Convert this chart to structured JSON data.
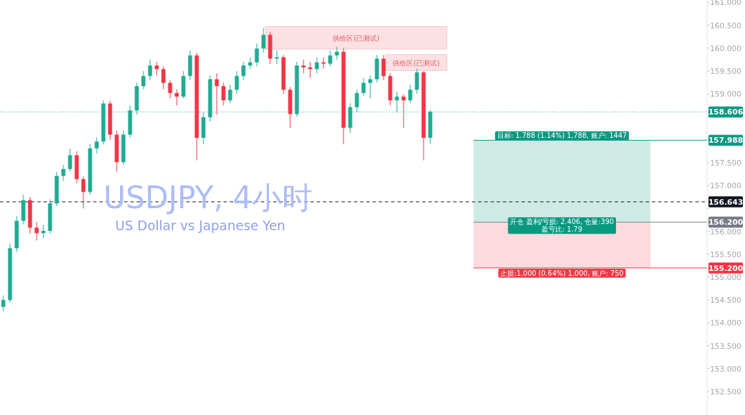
{
  "chart_data": {
    "type": "candlestick",
    "title": "USDJPY, 4小时",
    "subtitle": "US Dollar vs Japanese Yen",
    "categories": [
      null,
      null,
      null,
      null,
      null,
      null,
      null,
      null,
      null,
      null,
      null,
      null,
      null,
      null,
      null,
      null,
      null,
      null,
      null,
      null,
      null,
      null,
      null,
      null,
      null,
      null,
      null,
      null,
      null,
      null,
      null,
      null,
      null,
      null,
      null,
      null,
      null,
      null,
      null,
      null,
      null,
      null,
      null,
      null,
      null,
      null,
      null,
      null,
      null,
      null,
      null,
      null,
      null,
      null,
      null,
      null,
      null,
      null,
      null,
      null,
      null,
      null,
      null,
      null,
      null,
      null,
      null,
      null,
      null,
      null,
      null,
      null,
      null,
      null,
      null,
      null,
      null,
      null,
      null,
      null,
      null,
      null,
      null,
      null,
      null,
      null,
      null,
      null,
      null,
      null,
      null,
      null,
      null,
      null,
      null,
      null,
      null,
      null,
      null,
      null,
      null,
      null,
      null,
      null,
      null,
      null
    ],
    "ohlc": [
      [
        154.35,
        154.6,
        154.25,
        154.5
      ],
      [
        154.5,
        155.73,
        154.45,
        155.63
      ],
      [
        155.63,
        156.33,
        155.55,
        156.23
      ],
      [
        156.23,
        156.8,
        156.15,
        156.68
      ],
      [
        156.68,
        156.75,
        155.95,
        156.08
      ],
      [
        156.08,
        156.2,
        155.8,
        155.96
      ],
      [
        155.96,
        156.15,
        155.85,
        156.01
      ],
      [
        156.01,
        156.7,
        155.95,
        156.61
      ],
      [
        156.61,
        157.3,
        156.55,
        157.21
      ],
      [
        157.21,
        157.45,
        157.1,
        157.36
      ],
      [
        157.36,
        157.8,
        157.3,
        157.66
      ],
      [
        157.66,
        157.75,
        157.05,
        157.14
      ],
      [
        157.14,
        157.2,
        156.5,
        156.86
      ],
      [
        156.86,
        157.9,
        156.8,
        157.81
      ],
      [
        157.81,
        158.05,
        157.7,
        157.96
      ],
      [
        157.96,
        158.86,
        157.9,
        158.79
      ],
      [
        158.79,
        158.85,
        158.0,
        158.11
      ],
      [
        158.11,
        158.2,
        157.3,
        157.51
      ],
      [
        157.51,
        158.2,
        157.45,
        158.11
      ],
      [
        158.11,
        158.75,
        158.05,
        158.64
      ],
      [
        158.64,
        159.25,
        158.55,
        159.17
      ],
      [
        159.17,
        159.5,
        159.1,
        159.39
      ],
      [
        159.39,
        159.75,
        159.3,
        159.62
      ],
      [
        159.62,
        159.7,
        159.4,
        159.54
      ],
      [
        159.54,
        159.6,
        159.1,
        159.24
      ],
      [
        159.24,
        159.3,
        158.9,
        159.02
      ],
      [
        159.02,
        159.1,
        158.75,
        158.94
      ],
      [
        158.94,
        159.5,
        158.9,
        159.39
      ],
      [
        159.39,
        159.95,
        159.3,
        159.84
      ],
      [
        159.84,
        159.9,
        157.55,
        158.04
      ],
      [
        158.04,
        158.6,
        157.9,
        158.49
      ],
      [
        158.49,
        159.4,
        158.4,
        159.32
      ],
      [
        159.32,
        159.45,
        158.55,
        159.17
      ],
      [
        159.17,
        159.25,
        158.75,
        158.86
      ],
      [
        158.86,
        159.2,
        158.8,
        159.09
      ],
      [
        159.09,
        159.5,
        159.0,
        159.39
      ],
      [
        159.39,
        159.7,
        159.3,
        159.62
      ],
      [
        159.62,
        159.8,
        159.55,
        159.69
      ],
      [
        159.69,
        160.1,
        159.6,
        159.99
      ],
      [
        159.99,
        160.44,
        159.9,
        160.29
      ],
      [
        160.29,
        160.35,
        159.65,
        159.77
      ],
      [
        159.77,
        159.95,
        159.65,
        159.8
      ],
      [
        159.8,
        159.85,
        159.0,
        159.09
      ],
      [
        159.09,
        159.15,
        158.26,
        158.56
      ],
      [
        158.56,
        159.7,
        158.5,
        159.62
      ],
      [
        159.62,
        159.75,
        159.45,
        159.58
      ],
      [
        159.58,
        159.7,
        159.35,
        159.54
      ],
      [
        159.54,
        159.8,
        159.45,
        159.69
      ],
      [
        159.69,
        159.8,
        159.55,
        159.66
      ],
      [
        159.66,
        159.95,
        159.6,
        159.84
      ],
      [
        159.84,
        160.03,
        159.75,
        159.92
      ],
      [
        159.92,
        160.0,
        157.9,
        158.26
      ],
      [
        158.26,
        158.8,
        158.15,
        158.71
      ],
      [
        158.71,
        159.1,
        158.6,
        159.02
      ],
      [
        159.02,
        159.35,
        158.95,
        159.24
      ],
      [
        159.24,
        159.4,
        158.9,
        159.32
      ],
      [
        159.32,
        159.85,
        159.25,
        159.77
      ],
      [
        159.77,
        159.85,
        159.3,
        159.39
      ],
      [
        159.39,
        159.45,
        158.75,
        158.86
      ],
      [
        158.86,
        159.05,
        158.6,
        158.94
      ],
      [
        158.94,
        159.0,
        158.26,
        158.86
      ],
      [
        158.86,
        159.2,
        158.8,
        159.09
      ],
      [
        159.09,
        159.55,
        159.0,
        159.47
      ],
      [
        159.47,
        159.5,
        157.55,
        158.04
      ],
      [
        158.04,
        158.65,
        157.9,
        158.61
      ],
      null,
      null,
      null,
      null,
      null,
      null,
      null,
      null,
      null,
      null,
      null,
      null,
      null,
      null,
      null,
      null,
      null,
      null,
      null,
      null,
      null,
      null,
      null,
      null,
      null,
      null,
      null,
      null,
      null,
      null,
      null,
      null,
      null,
      null,
      null,
      null,
      null,
      null,
      null,
      null,
      null
    ],
    "ylim": [
      151.99,
      161.05
    ],
    "yticks": [
      {
        "value": 152.5,
        "label": "152.500"
      },
      {
        "value": 153,
        "label": "153.000"
      },
      {
        "value": 153.5,
        "label": "153.500"
      },
      {
        "value": 154,
        "label": "154.000"
      },
      {
        "value": 154.5,
        "label": "154.500"
      },
      {
        "value": 155,
        "label": "155.000"
      },
      {
        "value": 155.5,
        "label": "155.500"
      },
      {
        "value": 156,
        "label": "156.000"
      },
      {
        "value": 156.5,
        "label": null
      },
      {
        "value": 157,
        "label": "157.000"
      },
      {
        "value": 157.5,
        "label": "157.500"
      },
      {
        "value": 158,
        "label": null
      },
      {
        "value": 158.5,
        "label": null
      },
      {
        "value": 159,
        "label": "159.000"
      },
      {
        "value": 159.5,
        "label": "159.500"
      },
      {
        "value": 160,
        "label": "160.000"
      },
      {
        "value": 160.5,
        "label": "160.500"
      },
      {
        "value": 161,
        "label": "161.000"
      }
    ],
    "tick_labels": "y",
    "ref_lines": [
      {
        "axis": "y",
        "value": 158.606,
        "label": "158.606",
        "color": "#089981",
        "line_style": "dotted"
      },
      {
        "axis": "y",
        "value": 157.988,
        "label": "157.988",
        "color": "#089981"
      },
      {
        "axis": "y",
        "value": 156.643,
        "label": "156.643",
        "color": "#131722",
        "line_style": "dashed"
      },
      {
        "axis": "y",
        "value": 156.2,
        "label": "156.200",
        "color": "#787b86"
      },
      {
        "axis": "y",
        "value": 155.2,
        "label": "155.200",
        "color": "#f23645"
      }
    ],
    "bands": [
      {
        "axis": "y",
        "from": 159.98,
        "to": 160.47,
        "label": "供给区(已测试)",
        "color": "#fbe1e3"
      },
      {
        "axis": "y",
        "from": 159.51,
        "to": 159.86,
        "label": "供给区(已测试)",
        "color": "#fbe1e3"
      },
      {
        "axis": "y",
        "from": 156.2,
        "to": 157.988,
        "label": "目标: 1.788 (1.14%) 1,788, 账户: 1447",
        "color": "#cfeae4"
      },
      {
        "axis": "y",
        "from": 155.2,
        "to": 156.2,
        "label": "止损:1.000 (0.64%) 1,000, 账户: 750",
        "color": "#fcdadd"
      }
    ],
    "annotations": [
      {
        "text": "开仓 盈利/亏损: 2.406, 仓量:390\n盈亏比: 1.79",
        "y": 156.2
      }
    ]
  }
}
